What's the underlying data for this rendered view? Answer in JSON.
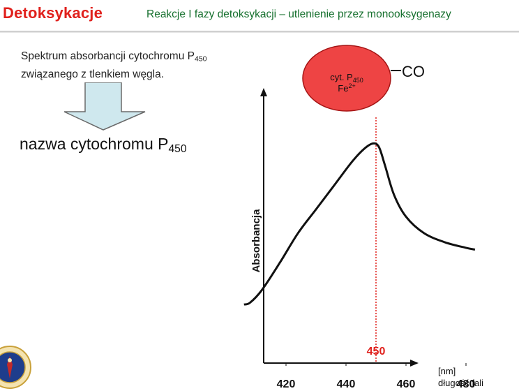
{
  "header": {
    "title": "Detoksykacje",
    "subtitle": "Reakcje I fazy detoksykacji – utlenienie  przez monooksygenazy"
  },
  "intro": {
    "line1": "Spektrum absorbancji cytochromu P",
    "line1_sub": "450",
    "line2": "związanego z tlenkiem węgla."
  },
  "arrow_icon": "down-arrow-icon",
  "result": {
    "text": "nazwa cytochromu P",
    "sub": "450"
  },
  "molecule": {
    "name": "cyt. P",
    "name_sub": "450",
    "ion": "Fe",
    "ion_sup": "2+",
    "ligand": "CO",
    "fill_color": "#ee4444"
  },
  "logo_icon": "university-seal-icon",
  "chart_data": {
    "type": "line",
    "series": [
      {
        "x": [
          406,
          408,
          412,
          418,
          424,
          430,
          436,
          442,
          446,
          449,
          451,
          453,
          456,
          460,
          466,
          473,
          480,
          483
        ],
        "y": [
          0.32,
          0.33,
          0.4,
          0.55,
          0.71,
          0.84,
          0.97,
          1.1,
          1.17,
          1.2,
          1.18,
          1.08,
          0.92,
          0.8,
          0.71,
          0.66,
          0.63,
          0.62
        ]
      }
    ],
    "xlim": [
      400,
      500
    ],
    "ylim": [
      0,
      1.45
    ],
    "xticks": [
      420,
      440,
      460,
      480
    ],
    "ylabel": "Absorbancja",
    "xlabel_unit": "[nm]",
    "xlabel": "długość fali",
    "marker_x": 450,
    "marker_label": "450",
    "marker_color": "#e0201c",
    "grid": false
  }
}
